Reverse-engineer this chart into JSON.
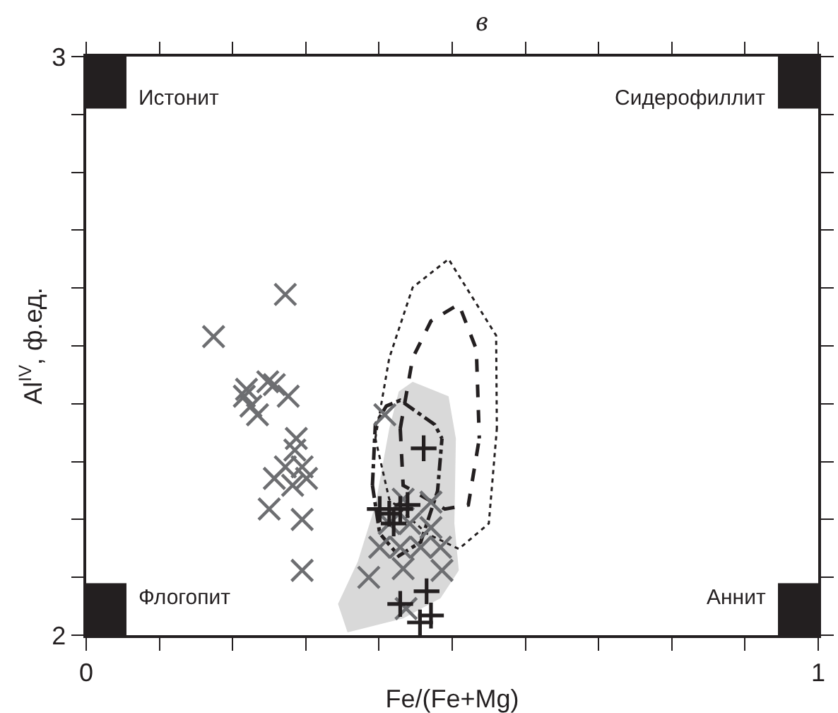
{
  "chart_data": {
    "type": "scatter",
    "title": "в",
    "xlabel": "Fe/(Fe+Mg)",
    "ylabel": "Al$^{IV}$, ф.ед.",
    "xlim": [
      0,
      1
    ],
    "ylim": [
      2,
      3
    ],
    "xticks": [
      0,
      {
        "value": 0.1,
        "label": null
      },
      {
        "value": 0.2,
        "label": null
      },
      {
        "value": 0.3,
        "label": null
      },
      {
        "value": 0.4,
        "label": null
      },
      {
        "value": 0.5,
        "label": null
      },
      {
        "value": 0.6,
        "label": null
      },
      {
        "value": 0.7,
        "label": null
      },
      {
        "value": 0.8,
        "label": null
      },
      {
        "value": 0.9,
        "label": null
      },
      1
    ],
    "yticks": [
      2,
      {
        "value": 2.1,
        "label": null
      },
      {
        "value": 2.2,
        "label": null
      },
      {
        "value": 2.3,
        "label": null
      },
      {
        "value": 2.4,
        "label": null
      },
      {
        "value": 2.5,
        "label": null
      },
      {
        "value": 2.6,
        "label": null
      },
      {
        "value": 2.7,
        "label": null
      },
      {
        "value": 2.8,
        "label": null
      },
      {
        "value": 2.9,
        "label": null
      },
      3
    ],
    "series": [
      {
        "type": "area",
        "color": "#d9d9d9",
        "x": [
          0.446,
          0.495,
          0.505,
          0.503,
          0.509,
          0.484,
          0.433,
          0.357,
          0.344,
          0.371,
          0.395,
          0.414,
          0.427,
          0.446
        ],
        "values": [
          2.438,
          2.413,
          2.34,
          2.193,
          2.112,
          2.064,
          2.029,
          2.005,
          2.054,
          2.127,
          2.225,
          2.357,
          2.421,
          2.438
        ]
      },
      {
        "type": "line",
        "line_style": "dotted",
        "color": "#231f20",
        "x": [
          0.395,
          0.414,
          0.446,
          0.495,
          0.56,
          0.561,
          null,
          0.395,
          0.414,
          0.465,
          0.509,
          0.55,
          0.561
        ],
        "values": [
          2.34,
          2.479,
          2.601,
          2.65,
          2.518,
          2.357,
          null,
          2.34,
          2.235,
          2.176,
          2.149,
          2.193,
          2.357
        ]
      },
      {
        "type": "line",
        "line_style": "dashed",
        "color": "#231f20",
        "x": [
          0.429,
          0.446,
          0.471,
          0.509,
          0.533,
          0.537,
          null,
          0.429,
          0.433,
          0.49,
          0.522,
          0.537
        ],
        "values": [
          2.357,
          2.479,
          2.543,
          2.572,
          2.494,
          2.34,
          null,
          2.357,
          2.259,
          2.218,
          2.225,
          2.34
        ]
      },
      {
        "type": "line",
        "line_style": "dashdot",
        "color": "#231f20",
        "x": [
          0.391,
          0.395,
          0.41,
          0.429,
          0.476,
          0.486,
          null,
          0.391,
          0.401,
          0.427,
          0.457,
          0.48,
          0.486
        ],
        "values": [
          2.259,
          2.364,
          2.396,
          2.406,
          2.364,
          2.34,
          null,
          2.259,
          2.176,
          2.137,
          2.161,
          2.249,
          2.34
        ]
      },
      {
        "marker": "cross",
        "color": "#6d6e71",
        "x": [
          0.272,
          0.174,
          0.219,
          0.248,
          0.257,
          0.276,
          0.225,
          0.234,
          0.216,
          0.287,
          0.285,
          0.272,
          0.295,
          0.257,
          0.301,
          0.282,
          0.25,
          0.295,
          0.295,
          0.408,
          0.433,
          0.471,
          0.414,
          0.442,
          0.471,
          0.401,
          0.429,
          0.457,
          0.484,
          0.386,
          0.433,
          0.486,
          0.437
        ],
        "values": [
          2.589,
          2.516,
          2.425,
          2.438,
          2.433,
          2.413,
          2.396,
          2.381,
          2.413,
          2.34,
          2.32,
          2.291,
          2.291,
          2.271,
          2.271,
          2.259,
          2.218,
          2.2,
          2.112,
          2.381,
          2.235,
          2.23,
          2.193,
          2.193,
          2.186,
          2.152,
          2.152,
          2.152,
          2.152,
          2.1,
          2.115,
          2.112,
          2.046
        ]
      },
      {
        "marker": "plus",
        "color": "#231f20",
        "x": [
          0.461,
          0.401,
          0.414,
          0.42,
          0.439,
          0.429,
          0.465,
          0.429,
          0.471,
          0.456
        ],
        "values": [
          2.323,
          2.218,
          2.21,
          2.193,
          2.225,
          2.218,
          2.076,
          2.054,
          2.034,
          2.022
        ]
      }
    ],
    "annotations": [
      "Истонит",
      "Сидерофиллит",
      "Флогопит",
      "Аннит"
    ]
  }
}
